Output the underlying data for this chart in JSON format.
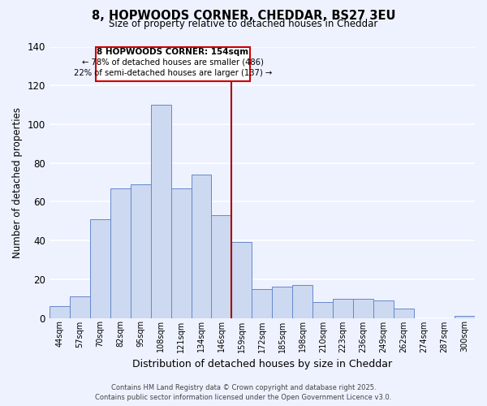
{
  "title": "8, HOPWOODS CORNER, CHEDDAR, BS27 3EU",
  "subtitle": "Size of property relative to detached houses in Cheddar",
  "xlabel": "Distribution of detached houses by size in Cheddar",
  "ylabel": "Number of detached properties",
  "bar_labels": [
    "44sqm",
    "57sqm",
    "70sqm",
    "82sqm",
    "95sqm",
    "108sqm",
    "121sqm",
    "134sqm",
    "146sqm",
    "159sqm",
    "172sqm",
    "185sqm",
    "198sqm",
    "210sqm",
    "223sqm",
    "236sqm",
    "249sqm",
    "262sqm",
    "274sqm",
    "287sqm",
    "300sqm"
  ],
  "bar_values": [
    6,
    11,
    51,
    67,
    69,
    110,
    67,
    74,
    53,
    39,
    15,
    16,
    17,
    8,
    10,
    10,
    9,
    5,
    0,
    0,
    1
  ],
  "bar_color": "#ccd9f0",
  "bar_edge_color": "#6688cc",
  "ylim": [
    0,
    140
  ],
  "yticks": [
    0,
    20,
    40,
    60,
    80,
    100,
    120,
    140
  ],
  "vline_x": 8.5,
  "vline_color": "#aa0000",
  "annotation_title": "8 HOPWOODS CORNER: 154sqm",
  "annotation_line1": "← 78% of detached houses are smaller (486)",
  "annotation_line2": "22% of semi-detached houses are larger (137) →",
  "annotation_box_color": "#cc0000",
  "footer_line1": "Contains HM Land Registry data © Crown copyright and database right 2025.",
  "footer_line2": "Contains public sector information licensed under the Open Government Licence v3.0.",
  "background_color": "#eef2ff",
  "grid_color": "#ffffff"
}
